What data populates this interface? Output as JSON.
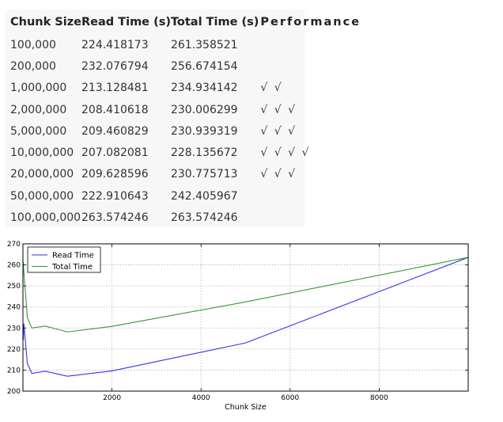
{
  "table": {
    "headers": [
      "Chunk Size",
      "Read Time (s)",
      "Total Time (s)",
      "Performance"
    ],
    "rows": [
      [
        "100,000",
        "224.418173",
        "261.358521",
        ""
      ],
      [
        "200,000",
        "232.076794",
        "256.674154",
        ""
      ],
      [
        "1,000,000",
        "213.128481",
        "234.934142",
        "√ √"
      ],
      [
        "2,000,000",
        "208.410618",
        "230.006299",
        "√ √ √"
      ],
      [
        "5,000,000",
        "209.460829",
        "230.939319",
        "√ √ √"
      ],
      [
        "10,000,000",
        "207.082081",
        "228.135672",
        "√ √ √ √"
      ],
      [
        "20,000,000",
        "209.628596",
        "230.775713",
        "√ √ √"
      ],
      [
        "50,000,000",
        "222.910643",
        "242.405967",
        ""
      ],
      [
        "100,000,000",
        "263.574246",
        "263.574246",
        ""
      ]
    ]
  },
  "chart_data": {
    "type": "line",
    "title": "",
    "xlabel": "Chunk Size",
    "ylabel": "",
    "xlim": [
      0,
      10000
    ],
    "ylim": [
      200,
      270
    ],
    "xticks": [
      2000,
      4000,
      6000,
      8000
    ],
    "yticks": [
      200,
      210,
      220,
      230,
      240,
      250,
      260,
      270
    ],
    "grid": true,
    "legend_position": "top-left",
    "x": [
      10,
      20,
      100,
      200,
      500,
      1000,
      2000,
      5000,
      10000
    ],
    "series": [
      {
        "name": "Read Time",
        "color": "#3333ee",
        "values": [
          224.418173,
          232.076794,
          213.128481,
          208.410618,
          209.460829,
          207.082081,
          209.628596,
          222.910643,
          263.574246
        ]
      },
      {
        "name": "Total Time",
        "color": "#339933",
        "values": [
          261.358521,
          256.674154,
          234.934142,
          230.006299,
          230.939319,
          228.135672,
          230.775713,
          242.405967,
          263.574246
        ]
      }
    ]
  }
}
